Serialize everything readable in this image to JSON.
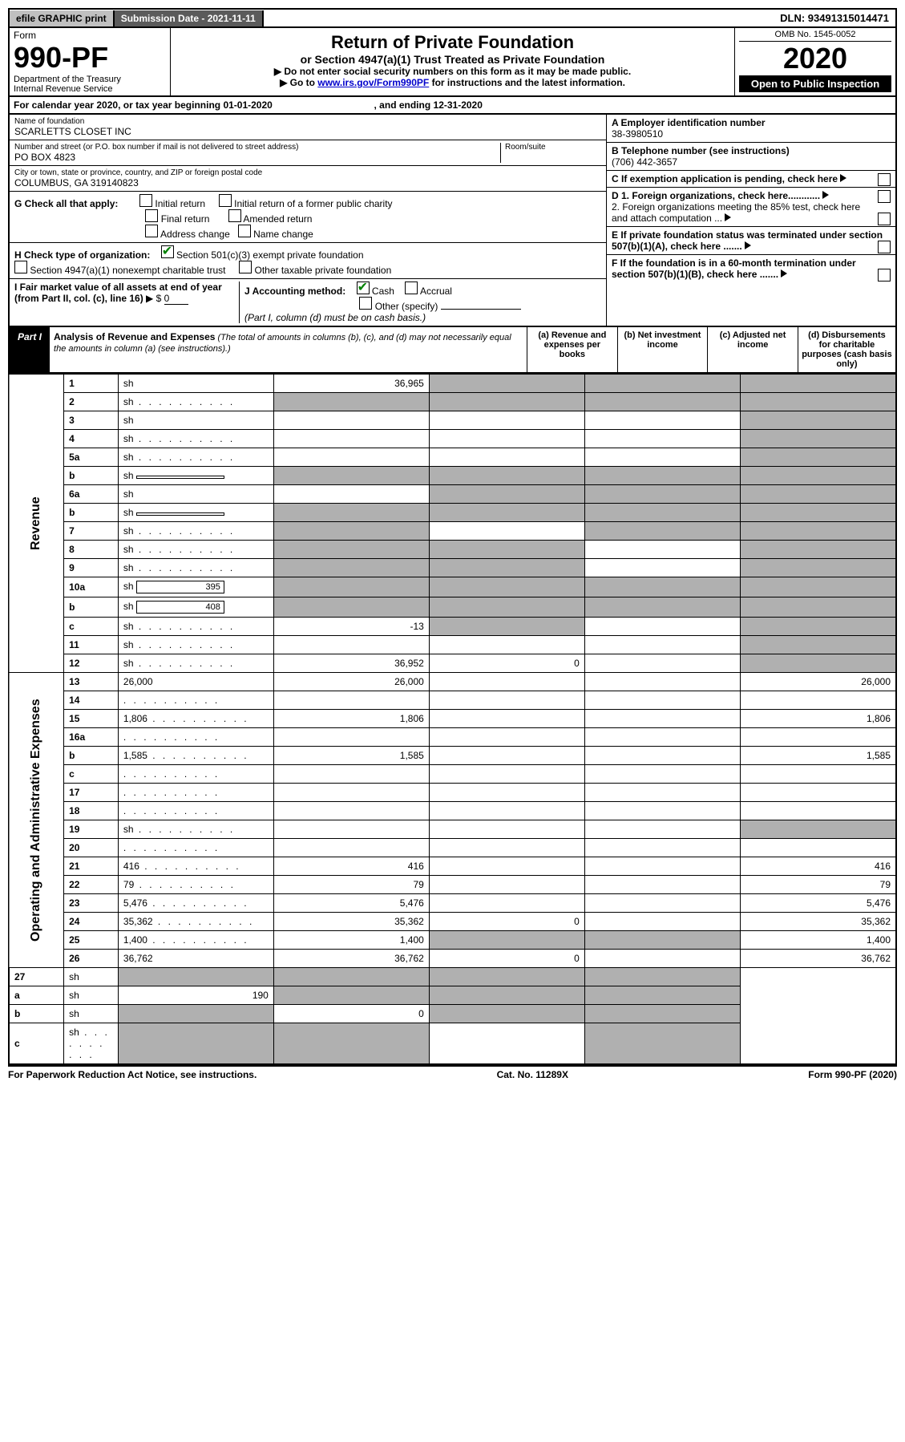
{
  "top": {
    "efile": "efile GRAPHIC print",
    "submission": "Submission Date - 2021-11-11",
    "dln": "DLN: 93491315014471"
  },
  "header": {
    "form_word": "Form",
    "form_number": "990-PF",
    "dept": "Department of the Treasury",
    "irs": "Internal Revenue Service",
    "title": "Return of Private Foundation",
    "subtitle": "or Section 4947(a)(1) Trust Treated as Private Foundation",
    "note1": "▶ Do not enter social security numbers on this form as it may be made public.",
    "note2_pre": "▶ Go to ",
    "note2_link": "www.irs.gov/Form990PF",
    "note2_post": " for instructions and the latest information.",
    "omb": "OMB No. 1545-0052",
    "year": "2020",
    "open": "Open to Public Inspection"
  },
  "calendar": {
    "text": "For calendar year 2020, or tax year beginning 01-01-2020",
    "text2": ", and ending 12-31-2020"
  },
  "entity": {
    "name_label": "Name of foundation",
    "name": "SCARLETTS CLOSET INC",
    "street_label": "Number and street (or P.O. box number if mail is not delivered to street address)",
    "street": "PO BOX 4823",
    "room_label": "Room/suite",
    "city_label": "City or town, state or province, country, and ZIP or foreign postal code",
    "city": "COLUMBUS, GA  319140823",
    "a_label": "A Employer identification number",
    "a_val": "38-3980510",
    "b_label": "B Telephone number (see instructions)",
    "b_val": "(706) 442-3657",
    "c_label": "C If exemption application is pending, check here",
    "d1": "D 1. Foreign organizations, check here............",
    "d2": "2. Foreign organizations meeting the 85% test, check here and attach computation ...",
    "e": "E If private foundation status was terminated under section 507(b)(1)(A), check here .......",
    "f": "F If the foundation is in a 60-month termination under section 507(b)(1)(B), check here .......",
    "g_label": "G Check all that apply:",
    "g_initial": "Initial return",
    "g_initial_former": "Initial return of a former public charity",
    "g_final": "Final return",
    "g_amended": "Amended return",
    "g_address": "Address change",
    "g_name": "Name change",
    "h_label": "H Check type of organization:",
    "h_501c3": "Section 501(c)(3) exempt private foundation",
    "h_4947": "Section 4947(a)(1) nonexempt charitable trust",
    "h_other": "Other taxable private foundation",
    "i_label": "I Fair market value of all assets at end of year (from Part II, col. (c), line 16)",
    "i_val": "0",
    "i_arrow": "▶ $",
    "j_label": "J Accounting method:",
    "j_cash": "Cash",
    "j_accrual": "Accrual",
    "j_other": "Other (specify)",
    "j_note": "(Part I, column (d) must be on cash basis.)"
  },
  "part1": {
    "label": "Part I",
    "title": "Analysis of Revenue and Expenses",
    "note": " (The total of amounts in columns (b), (c), and (d) may not necessarily equal the amounts in column (a) (see instructions).)",
    "col_a": "(a) Revenue and expenses per books",
    "col_b": "(b) Net investment income",
    "col_c": "(c) Adjusted net income",
    "col_d": "(d) Disbursements for charitable purposes (cash basis only)"
  },
  "sidelabels": {
    "rev": "Revenue",
    "exp": "Operating and Administrative Expenses"
  },
  "rows": [
    {
      "n": "1",
      "d": "sh",
      "a": "36,965",
      "b": "sh",
      "c": "sh"
    },
    {
      "n": "2",
      "d": "sh",
      "dots": true,
      "a": "sh",
      "b": "sh",
      "c": "sh"
    },
    {
      "n": "3",
      "d": "sh",
      "a": "",
      "b": "",
      "c": ""
    },
    {
      "n": "4",
      "d": "sh",
      "dots": true,
      "a": "",
      "b": "",
      "c": ""
    },
    {
      "n": "5a",
      "d": "sh",
      "dots": true,
      "a": "",
      "b": "",
      "c": ""
    },
    {
      "n": "b",
      "d": "sh",
      "box": "",
      "a": "sh",
      "b": "sh",
      "c": "sh"
    },
    {
      "n": "6a",
      "d": "sh",
      "a": "",
      "b": "sh",
      "c": "sh"
    },
    {
      "n": "b",
      "d": "sh",
      "box": "",
      "a": "sh",
      "b": "sh",
      "c": "sh"
    },
    {
      "n": "7",
      "d": "sh",
      "dots": true,
      "a": "sh",
      "b": "",
      "c": "sh"
    },
    {
      "n": "8",
      "d": "sh",
      "dots": true,
      "a": "sh",
      "b": "sh",
      "c": ""
    },
    {
      "n": "9",
      "d": "sh",
      "dots": true,
      "a": "sh",
      "b": "sh",
      "c": ""
    },
    {
      "n": "10a",
      "d": "sh",
      "box": "395",
      "a": "sh",
      "b": "sh",
      "c": "sh"
    },
    {
      "n": "b",
      "d": "sh",
      "dots": true,
      "box": "408",
      "a": "sh",
      "b": "sh",
      "c": "sh"
    },
    {
      "n": "c",
      "d": "sh",
      "dots": true,
      "a": "-13",
      "b": "sh",
      "c": ""
    },
    {
      "n": "11",
      "d": "sh",
      "dots": true,
      "a": "",
      "b": "",
      "c": ""
    },
    {
      "n": "12",
      "d": "sh",
      "dots": true,
      "a": "36,952",
      "b": "0",
      "c": ""
    }
  ],
  "rows_exp": [
    {
      "n": "13",
      "d": "26,000",
      "a": "26,000",
      "b": "",
      "c": ""
    },
    {
      "n": "14",
      "d": "",
      "dots": true,
      "a": "",
      "b": "",
      "c": ""
    },
    {
      "n": "15",
      "d": "1,806",
      "dots": true,
      "a": "1,806",
      "b": "",
      "c": ""
    },
    {
      "n": "16a",
      "d": "",
      "dots": true,
      "a": "",
      "b": "",
      "c": ""
    },
    {
      "n": "b",
      "d": "1,585",
      "dots": true,
      "a": "1,585",
      "b": "",
      "c": ""
    },
    {
      "n": "c",
      "d": "",
      "dots": true,
      "a": "",
      "b": "",
      "c": ""
    },
    {
      "n": "17",
      "d": "",
      "dots": true,
      "a": "",
      "b": "",
      "c": ""
    },
    {
      "n": "18",
      "d": "",
      "dots": true,
      "a": "",
      "b": "",
      "c": ""
    },
    {
      "n": "19",
      "d": "sh",
      "dots": true,
      "a": "",
      "b": "",
      "c": ""
    },
    {
      "n": "20",
      "d": "",
      "dots": true,
      "a": "",
      "b": "",
      "c": ""
    },
    {
      "n": "21",
      "d": "416",
      "dots": true,
      "a": "416",
      "b": "",
      "c": ""
    },
    {
      "n": "22",
      "d": "79",
      "dots": true,
      "a": "79",
      "b": "",
      "c": ""
    },
    {
      "n": "23",
      "d": "5,476",
      "dots": true,
      "a": "5,476",
      "b": "",
      "c": ""
    },
    {
      "n": "24",
      "d": "35,362",
      "dots": true,
      "a": "35,362",
      "b": "0",
      "c": ""
    },
    {
      "n": "25",
      "d": "1,400",
      "dots": true,
      "a": "1,400",
      "b": "sh",
      "c": "sh"
    },
    {
      "n": "26",
      "d": "36,762",
      "a": "36,762",
      "b": "0",
      "c": ""
    }
  ],
  "rows_end": [
    {
      "n": "27",
      "d": "sh",
      "a": "sh",
      "b": "sh",
      "c": "sh"
    },
    {
      "n": "a",
      "d": "sh",
      "a": "190",
      "b": "sh",
      "c": "sh"
    },
    {
      "n": "b",
      "d": "sh",
      "a": "sh",
      "b": "0",
      "c": "sh"
    },
    {
      "n": "c",
      "d": "sh",
      "dots": true,
      "a": "sh",
      "b": "sh",
      "c": ""
    }
  ],
  "footer": {
    "left": "For Paperwork Reduction Act Notice, see instructions.",
    "mid": "Cat. No. 11289X",
    "right": "Form 990-PF (2020)"
  }
}
